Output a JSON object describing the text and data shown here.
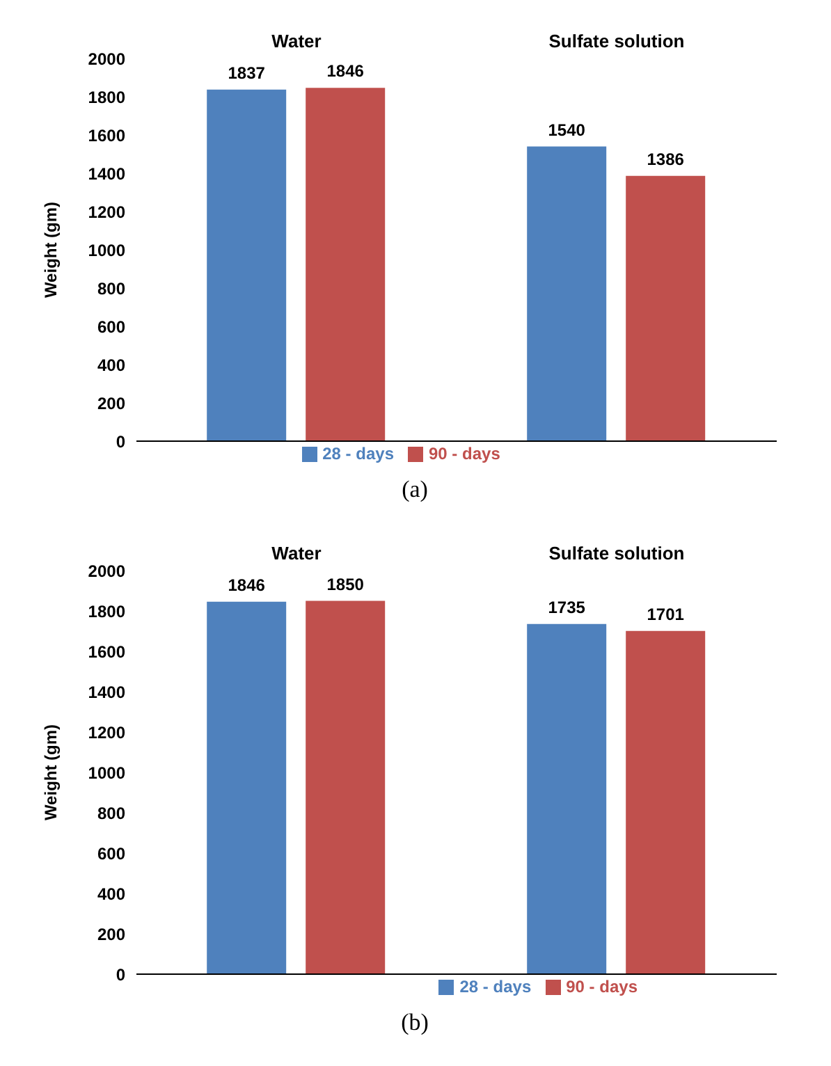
{
  "chart_data": [
    {
      "type": "bar",
      "categories": [
        "Water",
        "Sulfate solution"
      ],
      "ylabel": "Weight (gm)",
      "ylim": [
        0,
        2000
      ],
      "yticks": [
        0,
        200,
        400,
        600,
        800,
        1000,
        1200,
        1400,
        1600,
        1800,
        2000
      ],
      "series": [
        {
          "name": "28 - days",
          "color": "#4f81bd",
          "values": [
            1837,
            1540
          ]
        },
        {
          "name": "90 - days",
          "color": "#c0504d",
          "values": [
            1846,
            1386
          ]
        }
      ],
      "data_labels": true,
      "grid": false,
      "legend": "bottom",
      "annotations": [
        "(a)"
      ]
    },
    {
      "type": "bar",
      "categories": [
        "Water",
        "Sulfate solution"
      ],
      "ylabel": "Weight (gm)",
      "ylim": [
        0,
        2000
      ],
      "yticks": [
        0,
        200,
        400,
        600,
        800,
        1000,
        1200,
        1400,
        1600,
        1800,
        2000
      ],
      "series": [
        {
          "name": "28 - days",
          "color": "#4f81bd",
          "values": [
            1846,
            1735
          ]
        },
        {
          "name": "90 - days",
          "color": "#c0504d",
          "values": [
            1850,
            1701
          ]
        }
      ],
      "data_labels": true,
      "grid": false,
      "legend": "bottom right",
      "annotations": [
        "(b)"
      ]
    }
  ]
}
